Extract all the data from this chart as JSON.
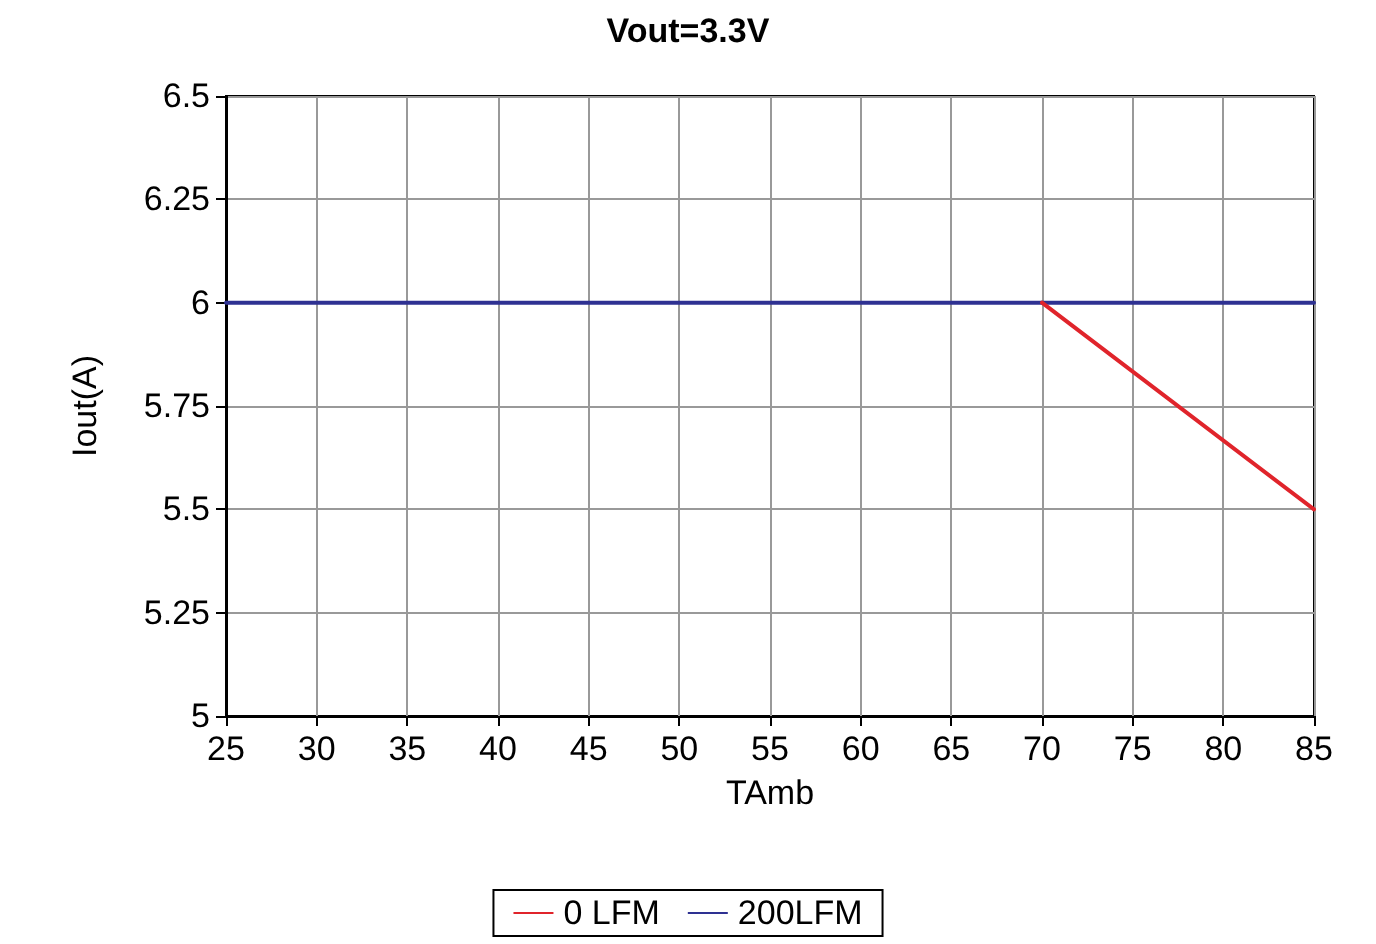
{
  "chart_data": {
    "type": "line",
    "title": "Vout=3.3V",
    "xlabel": "TAmb",
    "ylabel": "Iout(A)",
    "xlim": [
      25,
      85
    ],
    "xticks": [
      25,
      30,
      35,
      40,
      45,
      50,
      55,
      60,
      65,
      70,
      75,
      80,
      85
    ],
    "ylim": [
      5,
      6.5
    ],
    "yticks": [
      5,
      5.25,
      5.5,
      5.75,
      6,
      6.25,
      6.5
    ],
    "series": [
      {
        "name": "0 LFM",
        "color": "#e0242b",
        "x": [
          70,
          85
        ],
        "values": [
          6,
          5.5
        ]
      },
      {
        "name": "200LFM",
        "color": "#2e3192",
        "x": [
          25,
          85
        ],
        "values": [
          6,
          6
        ]
      }
    ],
    "grid": true,
    "legend": "bottom",
    "marker": "none",
    "line_style": "solid"
  }
}
